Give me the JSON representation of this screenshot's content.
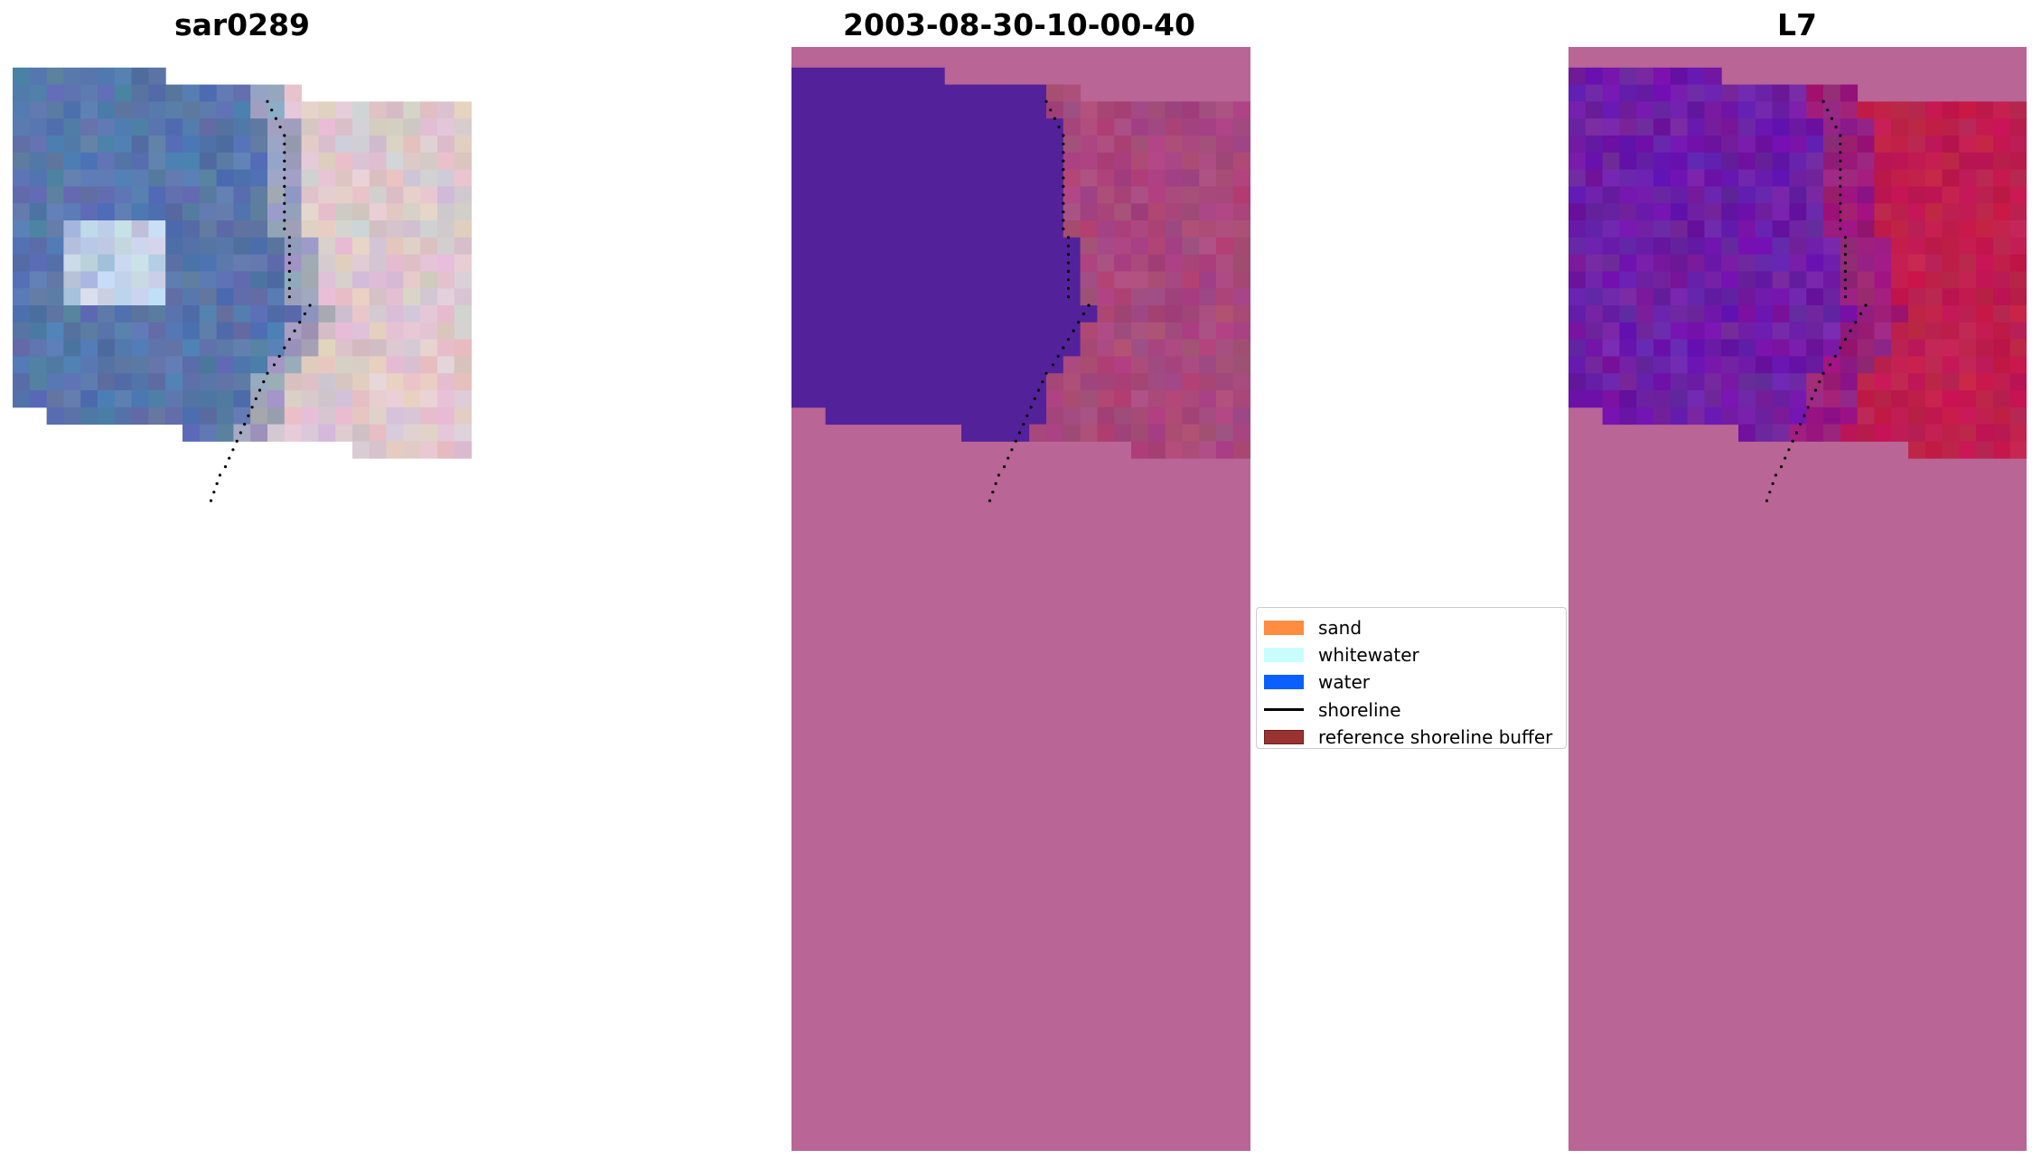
{
  "panels": {
    "left_title": "sar0289",
    "center_title": "2003-08-30-10-00-40",
    "right_title": "L7"
  },
  "legend": {
    "items": [
      {
        "label": "sand",
        "color": "#ff8c3f",
        "kind": "patch"
      },
      {
        "label": "whitewater",
        "color": "#c9fdfd",
        "kind": "patch"
      },
      {
        "label": "water",
        "color": "#0a5fff",
        "kind": "patch"
      },
      {
        "label": "shoreline",
        "color": "#000000",
        "kind": "line"
      },
      {
        "label": "reference shoreline buffer",
        "color": "#9b3232",
        "kind": "patch"
      }
    ]
  },
  "colors": {
    "background": "#ffffff",
    "mask_pink": "#b96595",
    "classified_water": "#53229b",
    "classified_land": "#a8487c",
    "index_water": "#6e1ea6",
    "index_land": "#c01e4e",
    "rgb_water": "#5876ab",
    "rgb_sand": "#dcc8cc",
    "rgb_whitewater": "#e7f4ff",
    "shoreline_dots": "#000000"
  }
}
